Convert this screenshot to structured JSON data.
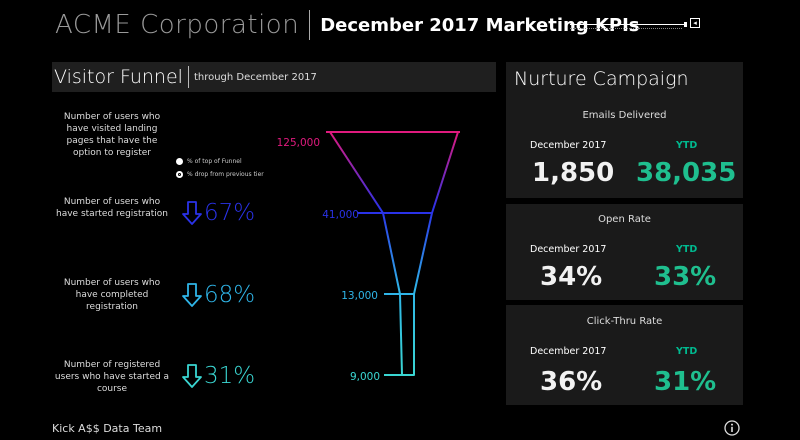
{
  "header": {
    "company": "ACME Corporation",
    "report_title": "December 2017 Marketing KPIs"
  },
  "funnel_panel": {
    "title": "Visitor Funnel",
    "subtitle": "through December 2017",
    "legend": {
      "item1": "% of top of Funnel",
      "item2": "% drop from previous tier"
    },
    "tiers": [
      {
        "description": "Number of users who have visited landing pages that have the option to register",
        "value": "125,000",
        "color": "#e01a7e"
      },
      {
        "description": "Number of users who have started registration",
        "value": "41,000",
        "drop": "67%",
        "color": "#2a32e8"
      },
      {
        "description": "Number of users who have completed registration",
        "value": "13,000",
        "drop": "68%",
        "color": "#2fb5e8"
      },
      {
        "description": "Number of registered users who have started a course",
        "value": "9,000",
        "drop": "31%",
        "color": "#3ad6d2"
      }
    ]
  },
  "nurture": {
    "title": "Nurture Campaign",
    "month_label": "December 2017",
    "ytd_label": "YTD",
    "metrics": [
      {
        "title": "Emails Delivered",
        "month_value": "1,850",
        "ytd_value": "38,035"
      },
      {
        "title": "Open Rate",
        "month_value": "34%",
        "ytd_value": "33%"
      },
      {
        "title": "Click-Thru Rate",
        "month_value": "36%",
        "ytd_value": "31%"
      }
    ]
  },
  "footer": {
    "team": "Kick A$$ Data Team",
    "info_icon": "info-icon"
  },
  "colors": {
    "accent_green": "#1fbf8f",
    "panel_bg": "#1a1a1a"
  }
}
